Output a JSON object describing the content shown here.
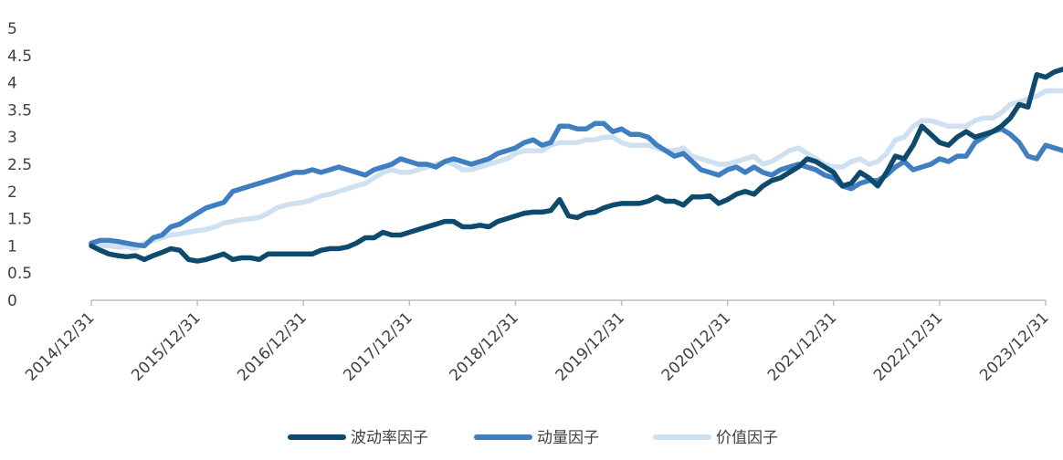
{
  "chart_data": {
    "type": "line",
    "x_ticks": [
      "2014/12/31",
      "2015/12/31",
      "2016/12/31",
      "2017/12/31",
      "2018/12/31",
      "2019/12/31",
      "2020/12/31",
      "2021/12/31",
      "2022/12/31",
      "2023/12/31"
    ],
    "y_ticks": [
      "0",
      "0.5",
      "1",
      "1.5",
      "2",
      "2.5",
      "3",
      "3.5",
      "4",
      "4.5",
      "5"
    ],
    "ylim": [
      0,
      5
    ],
    "xlim": [
      0,
      108
    ],
    "grid": false,
    "legend_position": "bottom",
    "series": [
      {
        "name": "波动率因子",
        "color": "#0e4a6e",
        "values": [
          1.0,
          0.92,
          0.85,
          0.82,
          0.8,
          0.82,
          0.75,
          0.82,
          0.88,
          0.95,
          0.92,
          0.75,
          0.72,
          0.75,
          0.8,
          0.85,
          0.75,
          0.78,
          0.78,
          0.75,
          0.85,
          0.85,
          0.85,
          0.85,
          0.85,
          0.85,
          0.92,
          0.95,
          0.95,
          0.98,
          1.05,
          1.15,
          1.15,
          1.25,
          1.2,
          1.2,
          1.25,
          1.3,
          1.35,
          1.4,
          1.45,
          1.45,
          1.35,
          1.35,
          1.38,
          1.35,
          1.45,
          1.5,
          1.55,
          1.6,
          1.62,
          1.62,
          1.65,
          1.85,
          1.55,
          1.52,
          1.6,
          1.62,
          1.7,
          1.75,
          1.78,
          1.78,
          1.78,
          1.82,
          1.9,
          1.82,
          1.82,
          1.75,
          1.9,
          1.9,
          1.92,
          1.78,
          1.85,
          1.95,
          2.0,
          1.95,
          2.1,
          2.2,
          2.25,
          2.35,
          2.45,
          2.6,
          2.55,
          2.45,
          2.35,
          2.1,
          2.15,
          2.35,
          2.25,
          2.1,
          2.35,
          2.65,
          2.6,
          2.85,
          3.2,
          3.05,
          2.9,
          2.85,
          3.0,
          3.1,
          3.0,
          3.05,
          3.1,
          3.2,
          3.35,
          3.6,
          3.55,
          4.15,
          4.1,
          4.2,
          4.25,
          4.3,
          4.25,
          4.7
        ]
      },
      {
        "name": "动量因子",
        "color": "#3f7fc1",
        "values": [
          1.05,
          1.1,
          1.1,
          1.08,
          1.05,
          1.02,
          1.0,
          1.15,
          1.2,
          1.35,
          1.4,
          1.5,
          1.6,
          1.7,
          1.75,
          1.8,
          2.0,
          2.05,
          2.1,
          2.15,
          2.2,
          2.25,
          2.3,
          2.35,
          2.35,
          2.4,
          2.35,
          2.4,
          2.45,
          2.4,
          2.35,
          2.3,
          2.4,
          2.45,
          2.5,
          2.6,
          2.55,
          2.5,
          2.5,
          2.45,
          2.55,
          2.6,
          2.55,
          2.5,
          2.55,
          2.6,
          2.7,
          2.75,
          2.8,
          2.9,
          2.95,
          2.85,
          2.9,
          3.2,
          3.2,
          3.15,
          3.15,
          3.25,
          3.25,
          3.1,
          3.15,
          3.05,
          3.05,
          3.0,
          2.85,
          2.75,
          2.65,
          2.7,
          2.55,
          2.4,
          2.35,
          2.3,
          2.4,
          2.45,
          2.35,
          2.45,
          2.35,
          2.3,
          2.4,
          2.45,
          2.5,
          2.45,
          2.4,
          2.3,
          2.25,
          2.1,
          2.05,
          2.15,
          2.2,
          2.2,
          2.3,
          2.45,
          2.55,
          2.4,
          2.45,
          2.5,
          2.6,
          2.55,
          2.65,
          2.65,
          2.9,
          3.0,
          3.1,
          3.15,
          3.05,
          2.9,
          2.65,
          2.6,
          2.85,
          2.8,
          2.75,
          2.75,
          2.8,
          2.85
        ]
      },
      {
        "name": "价值因子",
        "color": "#cfe0f0",
        "values": [
          1.02,
          1.0,
          1.0,
          0.98,
          0.98,
          0.95,
          1.05,
          1.1,
          1.15,
          1.2,
          1.22,
          1.25,
          1.28,
          1.3,
          1.35,
          1.42,
          1.45,
          1.48,
          1.5,
          1.52,
          1.6,
          1.7,
          1.75,
          1.78,
          1.8,
          1.85,
          1.92,
          1.95,
          2.0,
          2.05,
          2.1,
          2.15,
          2.25,
          2.35,
          2.4,
          2.35,
          2.35,
          2.4,
          2.45,
          2.5,
          2.55,
          2.5,
          2.4,
          2.4,
          2.45,
          2.5,
          2.55,
          2.6,
          2.7,
          2.75,
          2.75,
          2.75,
          2.85,
          2.9,
          2.9,
          2.9,
          2.95,
          2.95,
          3.0,
          3.0,
          2.9,
          2.85,
          2.85,
          2.85,
          2.8,
          2.75,
          2.75,
          2.8,
          2.65,
          2.6,
          2.55,
          2.5,
          2.5,
          2.55,
          2.6,
          2.65,
          2.5,
          2.55,
          2.65,
          2.75,
          2.8,
          2.7,
          2.6,
          2.5,
          2.45,
          2.45,
          2.55,
          2.6,
          2.5,
          2.55,
          2.7,
          2.95,
          3.0,
          3.2,
          3.3,
          3.3,
          3.25,
          3.2,
          3.2,
          3.2,
          3.3,
          3.35,
          3.35,
          3.45,
          3.6,
          3.65,
          3.7,
          3.75,
          3.85,
          3.85,
          3.85,
          3.8,
          3.9,
          4.1
        ]
      }
    ]
  }
}
